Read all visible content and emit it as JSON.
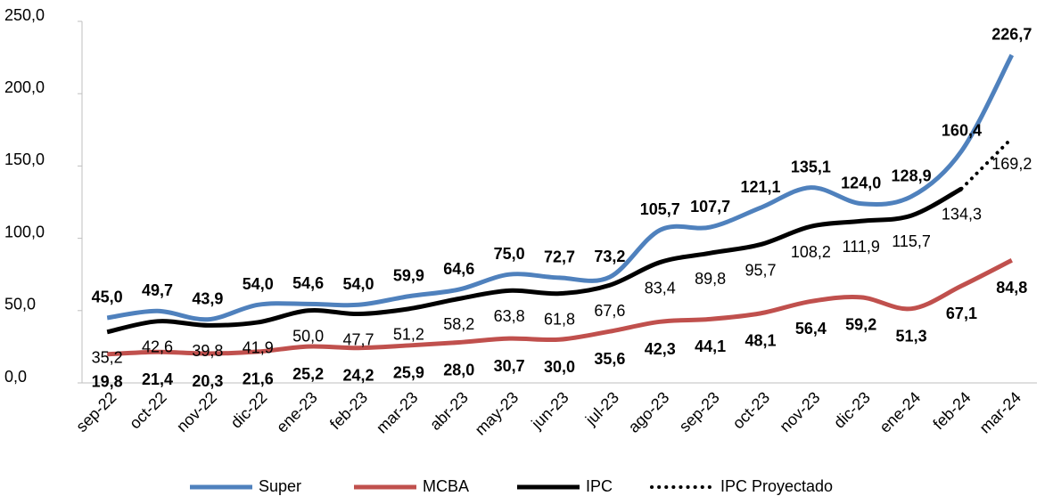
{
  "chart_data": {
    "type": "line",
    "categories": [
      "sep-22",
      "oct-22",
      "nov-22",
      "dic-22",
      "ene-23",
      "feb-23",
      "mar-23",
      "abr-23",
      "may-23",
      "jun-23",
      "jul-23",
      "ago-23",
      "sep-23",
      "oct-23",
      "nov-23",
      "dic-23",
      "ene-24",
      "feb-24",
      "mar-24"
    ],
    "series": [
      {
        "name": "Super",
        "color": "#4f81bd",
        "values": [
          45.0,
          49.7,
          43.9,
          54.0,
          54.6,
          54.0,
          59.9,
          64.6,
          75.0,
          72.7,
          73.2,
          105.7,
          107.7,
          121.1,
          135.1,
          124.0,
          128.9,
          160.4,
          226.7
        ],
        "value_labels": [
          "45,0",
          "49,7",
          "43,9",
          "54,0",
          "54,6",
          "54,0",
          "59,9",
          "64,6",
          "75,0",
          "72,7",
          "73,2",
          "105,7",
          "107,7",
          "121,1",
          "135,1",
          "124,0",
          "128,9",
          "160,4",
          "226,7"
        ]
      },
      {
        "name": "MCBA",
        "color": "#c0504d",
        "values": [
          19.8,
          21.4,
          20.3,
          21.6,
          25.2,
          24.2,
          25.9,
          28.0,
          30.7,
          30.0,
          35.6,
          42.3,
          44.1,
          48.1,
          56.4,
          59.2,
          51.3,
          67.1,
          84.8
        ],
        "value_labels": [
          "19,8",
          "21,4",
          "20,3",
          "21,6",
          "25,2",
          "24,2",
          "25,9",
          "28,0",
          "30,7",
          "30,0",
          "35,6",
          "42,3",
          "44,1",
          "48,1",
          "56,4",
          "59,2",
          "51,3",
          "67,1",
          "84,8"
        ]
      },
      {
        "name": "IPC",
        "color": "#000000",
        "values": [
          35.2,
          42.6,
          39.8,
          41.9,
          50.0,
          47.7,
          51.2,
          58.2,
          63.8,
          61.8,
          67.6,
          83.4,
          89.8,
          95.7,
          108.2,
          111.9,
          115.7,
          134.3,
          null
        ],
        "value_labels": [
          "35,2",
          "42,6",
          "39,8",
          "41,9",
          "50,0",
          "47,7",
          "51,2",
          "58,2",
          "63,8",
          "61,8",
          "67,6",
          "83,4",
          "89,8",
          "95,7",
          "108,2",
          "111,9",
          "115,7",
          "134,3",
          null
        ]
      },
      {
        "name": "IPC Proyectado",
        "color": "#000000",
        "dash": "dotted",
        "values": [
          null,
          null,
          null,
          null,
          null,
          null,
          null,
          null,
          null,
          null,
          null,
          null,
          null,
          null,
          null,
          null,
          null,
          134.3,
          169.2
        ],
        "value_labels": [
          null,
          null,
          null,
          null,
          null,
          null,
          null,
          null,
          null,
          null,
          null,
          null,
          null,
          null,
          null,
          null,
          null,
          null,
          "169,2"
        ]
      }
    ],
    "ylim": [
      0,
      250
    ],
    "yticks": [
      {
        "value": 0,
        "label": "0,0"
      },
      {
        "value": 50,
        "label": "50,0"
      },
      {
        "value": 100,
        "label": "100,0"
      },
      {
        "value": 150,
        "label": "150,0"
      },
      {
        "value": 200,
        "label": "200,0"
      },
      {
        "value": 250,
        "label": "250,0"
      }
    ],
    "grid": false,
    "legend": "bottom"
  }
}
